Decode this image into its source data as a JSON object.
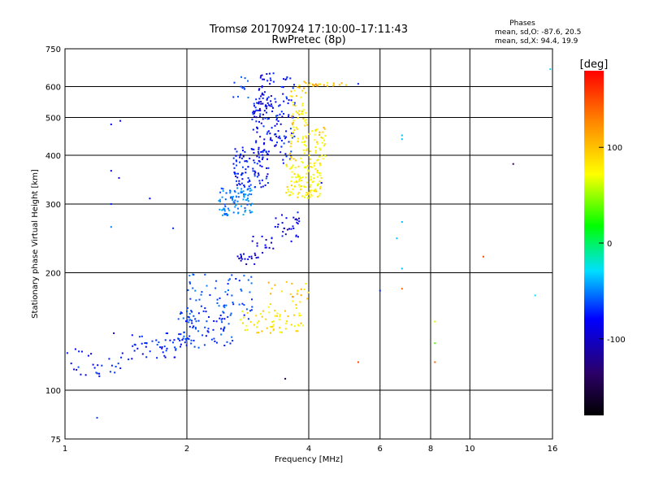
{
  "chart_data": {
    "type": "scatter",
    "title": "Tromsø 20170924 17:10:00–17:11:43",
    "subtitle": "RwPretec (8p)",
    "xlabel": "Frequency [MHz]",
    "ylabel": "Stationary phase Virtual Height [km]",
    "x_scale": "log",
    "y_scale": "log",
    "xlim": [
      1,
      16
    ],
    "ylim": [
      75,
      750
    ],
    "x_ticks": [
      1,
      2,
      4,
      6,
      8,
      10,
      16
    ],
    "x_tick_labels": [
      "1",
      "2",
      "4",
      "6",
      "8",
      "10",
      "16"
    ],
    "y_ticks": [
      75,
      100,
      200,
      300,
      400,
      500,
      600,
      750
    ],
    "y_tick_labels": [
      "75",
      "100",
      "200",
      "300",
      "400",
      "500",
      "600",
      "750"
    ],
    "grid": true,
    "phase_stats": {
      "title": "Phases",
      "line1": "mean, sd,O: -87.6, 20.5",
      "line2": "mean, sd,X:  94.4, 19.9"
    },
    "colorbar": {
      "label": "[deg]",
      "range": [
        -180,
        180
      ],
      "ticks": [
        -100,
        0,
        100
      ],
      "tick_labels": [
        "-100",
        "0",
        "100"
      ],
      "colormap": "rainbow"
    },
    "clusters": [
      {
        "x": [
          1.0,
          1.45
        ],
        "y": [
          108,
          128
        ],
        "phase": -95,
        "count": 30
      },
      {
        "x": [
          1.45,
          2.0
        ],
        "y": [
          120,
          140
        ],
        "phase": -90,
        "count": 45
      },
      {
        "x": [
          1.9,
          2.6
        ],
        "y": [
          128,
          160
        ],
        "phase": -85,
        "count": 80
      },
      {
        "x": [
          2.0,
          2.9
        ],
        "y": [
          150,
          200
        ],
        "phase": -75,
        "count": 70
      },
      {
        "x": [
          2.7,
          3.9
        ],
        "y": [
          140,
          160
        ],
        "phase": 105,
        "count": 60
      },
      {
        "x": [
          3.1,
          4.0
        ],
        "y": [
          160,
          190
        ],
        "phase": 115,
        "count": 25
      },
      {
        "x": [
          2.4,
          2.9
        ],
        "y": [
          280,
          330
        ],
        "phase": -60,
        "count": 90
      },
      {
        "x": [
          2.6,
          3.2
        ],
        "y": [
          330,
          420
        ],
        "phase": -95,
        "count": 110
      },
      {
        "x": [
          2.9,
          3.4
        ],
        "y": [
          420,
          560
        ],
        "phase": -100,
        "count": 80
      },
      {
        "x": [
          3.0,
          3.3
        ],
        "y": [
          520,
          650
        ],
        "phase": -105,
        "count": 40
      },
      {
        "x": [
          3.4,
          3.7
        ],
        "y": [
          380,
          640
        ],
        "phase": -95,
        "count": 50
      },
      {
        "x": [
          3.5,
          4.3
        ],
        "y": [
          310,
          380
        ],
        "phase": 100,
        "count": 110
      },
      {
        "x": [
          3.6,
          4.4
        ],
        "y": [
          380,
          480
        ],
        "phase": 108,
        "count": 80
      },
      {
        "x": [
          3.6,
          4.0
        ],
        "y": [
          480,
          620
        ],
        "phase": 112,
        "count": 40
      },
      {
        "x": [
          4.0,
          5.0
        ],
        "y": [
          600,
          615
        ],
        "phase": 118,
        "count": 20
      },
      {
        "x": [
          2.6,
          3.0
        ],
        "y": [
          210,
          225
        ],
        "phase": -110,
        "count": 20
      },
      {
        "x": [
          2.9,
          3.3
        ],
        "y": [
          225,
          250
        ],
        "phase": -110,
        "count": 15
      },
      {
        "x": [
          3.3,
          3.8
        ],
        "y": [
          240,
          290
        ],
        "phase": -105,
        "count": 30
      },
      {
        "x": [
          2.6,
          2.9
        ],
        "y": [
          560,
          640
        ],
        "phase": -70,
        "count": 12
      }
    ],
    "points": [
      {
        "x": 1.3,
        "y": 480,
        "phase": -100
      },
      {
        "x": 1.37,
        "y": 490,
        "phase": -100
      },
      {
        "x": 1.3,
        "y": 365,
        "phase": -110
      },
      {
        "x": 1.36,
        "y": 350,
        "phase": -110
      },
      {
        "x": 1.3,
        "y": 300,
        "phase": -90
      },
      {
        "x": 1.3,
        "y": 262,
        "phase": -60
      },
      {
        "x": 1.62,
        "y": 310,
        "phase": -100
      },
      {
        "x": 1.85,
        "y": 260,
        "phase": -90
      },
      {
        "x": 1.2,
        "y": 85,
        "phase": -80
      },
      {
        "x": 1.32,
        "y": 140,
        "phase": -120
      },
      {
        "x": 3.5,
        "y": 107,
        "phase": -150
      },
      {
        "x": 4.3,
        "y": 340,
        "phase": -100
      },
      {
        "x": 5.3,
        "y": 118,
        "phase": 160
      },
      {
        "x": 5.3,
        "y": 610,
        "phase": -90
      },
      {
        "x": 6.0,
        "y": 180,
        "phase": -90
      },
      {
        "x": 6.8,
        "y": 450,
        "phase": -40
      },
      {
        "x": 6.8,
        "y": 440,
        "phase": -40
      },
      {
        "x": 6.8,
        "y": 270,
        "phase": -40
      },
      {
        "x": 6.6,
        "y": 245,
        "phase": -40
      },
      {
        "x": 6.8,
        "y": 205,
        "phase": -40
      },
      {
        "x": 6.8,
        "y": 182,
        "phase": 150
      },
      {
        "x": 8.2,
        "y": 150,
        "phase": 80
      },
      {
        "x": 8.2,
        "y": 132,
        "phase": 30
      },
      {
        "x": 8.2,
        "y": 118,
        "phase": 150
      },
      {
        "x": 10.8,
        "y": 220,
        "phase": 160
      },
      {
        "x": 12.8,
        "y": 380,
        "phase": -140
      },
      {
        "x": 14.5,
        "y": 175,
        "phase": -30
      },
      {
        "x": 15.8,
        "y": 665,
        "phase": -30
      }
    ]
  }
}
